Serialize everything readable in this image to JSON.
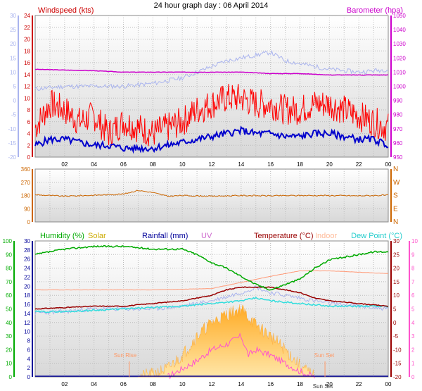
{
  "title": "24 hour graph day : 06 April 2014",
  "chart_data": [
    {
      "type": "line",
      "panel": "wind-baro",
      "labels": {
        "windspeed": "Windspeed (kts)",
        "barometer": "Barometer (hpa)"
      },
      "x_ticks": [
        "02",
        "04",
        "06",
        "08",
        "10",
        "12",
        "14",
        "16",
        "18",
        "20",
        "22",
        "00"
      ],
      "y_left_outer": {
        "range": [
          -20,
          30
        ],
        "ticks": [
          "30",
          "25",
          "20",
          "15",
          "10",
          "5",
          "0",
          "-5",
          "-10",
          "-15",
          "-20"
        ]
      },
      "y_left": {
        "range": [
          0,
          24
        ],
        "ticks": [
          "24",
          "22",
          "20",
          "18",
          "16",
          "14",
          "12",
          "10",
          "8",
          "6",
          "4",
          "2",
          "0"
        ]
      },
      "y_right": {
        "range": [
          950,
          1050
        ],
        "ticks": [
          "1050",
          "1040",
          "1030",
          "1020",
          "1010",
          "1000",
          "990",
          "980",
          "970",
          "960",
          "950"
        ]
      },
      "series": [
        {
          "name": "Barometer",
          "color": "#cc00cc",
          "axis": "right",
          "x": [
            0,
            2,
            4,
            6,
            8,
            10,
            12,
            14,
            16,
            18,
            20,
            22,
            24
          ],
          "y": [
            1012,
            1011.5,
            1011,
            1010,
            1010,
            1010,
            1010,
            1010,
            1009,
            1009,
            1008,
            1008,
            1008
          ]
        },
        {
          "name": "Windspeed gust",
          "color": "#ff0000",
          "axis": "left",
          "x": [
            0,
            1,
            2,
            3,
            4,
            5,
            6,
            7,
            8,
            9,
            10,
            11,
            12,
            13,
            14,
            15,
            16,
            17,
            18,
            19,
            20,
            21,
            22,
            23,
            24
          ],
          "y": [
            5,
            9,
            8,
            6,
            7,
            4,
            6,
            5,
            4,
            5,
            6,
            8,
            9,
            10,
            10,
            9,
            9,
            8,
            8,
            9,
            9,
            8,
            7,
            6,
            5
          ]
        },
        {
          "name": "Windspeed average",
          "color": "#0000cc",
          "axis": "left",
          "x": [
            0,
            1,
            2,
            3,
            4,
            5,
            6,
            7,
            8,
            9,
            10,
            11,
            12,
            13,
            14,
            15,
            16,
            17,
            18,
            19,
            20,
            21,
            22,
            23,
            24
          ],
          "y": [
            2,
            3,
            3,
            2.5,
            2,
            2,
            1.5,
            1.5,
            1.5,
            2,
            2.5,
            3,
            3.5,
            4,
            4.5,
            4,
            4,
            3.5,
            3.5,
            4,
            4,
            3.5,
            3,
            3,
            2
          ]
        },
        {
          "name": "Outer temperature trace",
          "color": "#aab4ee",
          "axis": "left_outer",
          "x": [
            0,
            2,
            4,
            6,
            8,
            10,
            11,
            12,
            13,
            14,
            15,
            16,
            17,
            18,
            19,
            20,
            22,
            24
          ],
          "y": [
            4,
            5,
            5,
            5,
            6,
            8,
            10,
            12,
            14,
            15,
            16,
            17,
            14,
            13,
            12,
            11,
            10,
            11
          ]
        }
      ]
    },
    {
      "type": "line",
      "panel": "wind-direction",
      "y_left": {
        "range": [
          0,
          360
        ],
        "ticks": [
          "360",
          "270",
          "180",
          "90",
          "0"
        ]
      },
      "y_right": {
        "ticks": [
          "N",
          "W",
          "S",
          "E",
          "N"
        ]
      },
      "series": [
        {
          "name": "Wind direction",
          "color": "#cc6600",
          "x": [
            0,
            2,
            4,
            6,
            7,
            8,
            9,
            10,
            12,
            14,
            16,
            18,
            20,
            22,
            24
          ],
          "y": [
            185,
            175,
            182,
            190,
            215,
            200,
            175,
            180,
            175,
            180,
            178,
            180,
            180,
            178,
            182
          ]
        }
      ]
    },
    {
      "type": "line",
      "panel": "temperature-humidity",
      "labels": {
        "humidity": "Humidity (%)",
        "solar": "Solar",
        "rainfall": "Rainfall (mm)",
        "uv": "UV",
        "temperature": "Temperature (°C)",
        "indoor": "Indoor",
        "dewpoint": "Dew Point (°C)"
      },
      "annotations": {
        "sunrise": "Sun Rise",
        "sunset": "Sun Set",
        "sunset_marker": "Sun Set"
      },
      "x_ticks": [
        "02",
        "04",
        "06",
        "08",
        "10",
        "12",
        "14",
        "16",
        "18",
        "20",
        "22",
        "00"
      ],
      "y_hum": {
        "range": [
          0,
          100
        ],
        "ticks": [
          "100",
          "90",
          "80",
          "70",
          "60",
          "50",
          "40",
          "30",
          "20",
          "10",
          "0"
        ]
      },
      "y_rain": {
        "range": [
          0,
          30
        ],
        "ticks": [
          "30",
          "28",
          "26",
          "24",
          "22",
          "20",
          "18",
          "16",
          "14",
          "12",
          "10",
          "8",
          "6",
          "4",
          "2",
          "0"
        ]
      },
      "y_temp": {
        "range": [
          -20,
          30
        ],
        "ticks": [
          "30",
          "25",
          "20",
          "15",
          "10",
          "5",
          "0",
          "-5",
          "-10",
          "-15",
          "-20"
        ]
      },
      "y_uv": {
        "range": [
          0,
          10
        ],
        "ticks": [
          "10",
          "9",
          "8",
          "7",
          "6",
          "5",
          "4",
          "3",
          "2",
          "1",
          "0"
        ]
      },
      "series": [
        {
          "name": "Humidity",
          "color": "#00aa00",
          "axis": "temp",
          "x": [
            0,
            2,
            4,
            6,
            8,
            10,
            11,
            12,
            13,
            14,
            15,
            16,
            17,
            18,
            19,
            20,
            21,
            22,
            23,
            24
          ],
          "y": [
            25,
            27,
            28,
            28,
            27,
            27,
            25,
            22,
            20,
            17,
            14,
            12,
            14,
            16,
            20,
            23,
            24,
            25,
            26,
            26
          ]
        },
        {
          "name": "Solar",
          "color": "#ffaa33",
          "axis": "temp",
          "x": [
            7,
            8,
            9,
            10,
            11,
            12,
            13,
            14,
            15,
            16,
            17,
            18,
            19
          ],
          "y": [
            -20,
            -19,
            -17,
            -12,
            -5,
            0,
            3,
            5,
            -1,
            -5,
            -10,
            -16,
            -20
          ]
        },
        {
          "name": "Temperature",
          "color": "#990000",
          "axis": "temp",
          "x": [
            0,
            2,
            4,
            6,
            8,
            10,
            12,
            13,
            14,
            15,
            16,
            17,
            18,
            19,
            20,
            22,
            24
          ],
          "y": [
            5,
            5.5,
            6,
            6,
            7,
            8,
            10,
            12,
            13,
            13,
            13,
            12,
            11,
            9,
            8,
            7,
            6
          ]
        },
        {
          "name": "Dew Point",
          "color": "#33dddd",
          "axis": "temp",
          "x": [
            0,
            2,
            4,
            6,
            8,
            10,
            12,
            14,
            15,
            16,
            18,
            20,
            22,
            24
          ],
          "y": [
            4,
            4,
            4.5,
            5,
            5.5,
            6,
            7,
            8,
            9,
            8,
            7,
            6,
            6,
            6
          ]
        },
        {
          "name": "Indoor",
          "color": "#ff9977",
          "axis": "temp",
          "x": [
            0,
            4,
            8,
            12,
            16,
            18,
            20,
            24
          ],
          "y": [
            12,
            12,
            12,
            12.5,
            17,
            19,
            19,
            18
          ]
        },
        {
          "name": "Temperature trace",
          "color": "#aab4ee",
          "axis": "temp",
          "x": [
            0,
            2,
            4,
            6,
            8,
            10,
            12,
            14,
            15,
            16,
            18,
            20,
            22,
            24
          ],
          "y": [
            3.5,
            4,
            5,
            5,
            5,
            6,
            8,
            11,
            13,
            11,
            9,
            7,
            6,
            5
          ]
        },
        {
          "name": "UV",
          "color": "#ff55cc",
          "axis": "temp",
          "x": [
            9,
            10,
            11,
            12,
            13,
            14,
            14.5,
            15,
            16,
            17,
            18,
            19
          ],
          "y": [
            -20,
            -17,
            -14,
            -10,
            -8,
            -5,
            -12,
            -10,
            -12,
            -15,
            -18,
            -20
          ]
        }
      ]
    }
  ]
}
